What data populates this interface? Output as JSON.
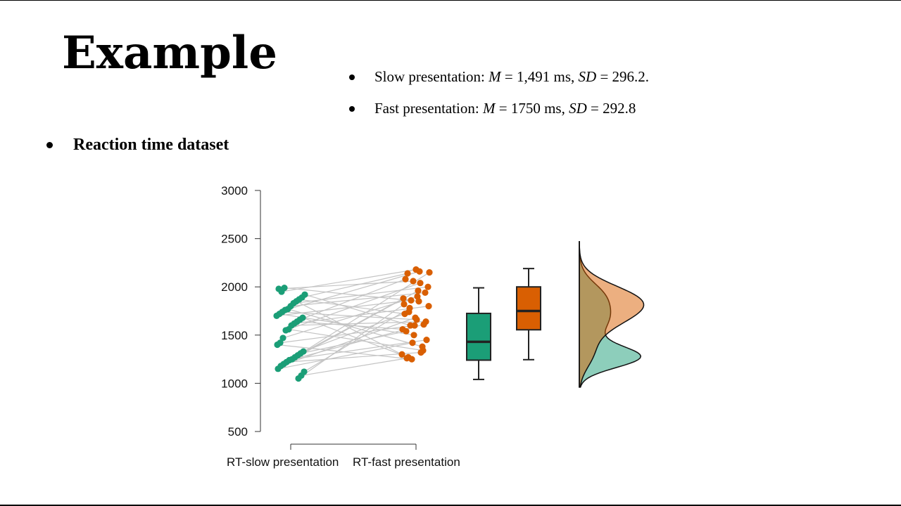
{
  "slide": {
    "title": "Example",
    "bullets": [
      {
        "label": "Slow presentation: ",
        "m_sym": "M",
        "m_val": " = 1,491 ms, ",
        "sd_sym": "SD",
        "sd_val": " = 296.2."
      },
      {
        "label": "Fast presentation: ",
        "m_sym": "M",
        "m_val": " = 1750 ms, ",
        "sd_sym": "SD",
        "sd_val": " = 292.8"
      }
    ],
    "section_label": "Reaction time dataset"
  },
  "chart_data": {
    "type": "raincloud",
    "y_ticks": [
      500,
      1000,
      1500,
      2000,
      2500,
      3000
    ],
    "ylim": [
      500,
      3000
    ],
    "grid": false,
    "categories": [
      "RT-slow presentation",
      "RT-fast presentation"
    ],
    "colors": {
      "slow": "#1b9e77",
      "fast": "#d95f02",
      "lines": "#c4c4c4"
    },
    "pairs": [
      [
        1990,
        1850
      ],
      [
        1950,
        2180
      ],
      [
        1980,
        2060
      ],
      [
        1920,
        1600
      ],
      [
        1890,
        2140
      ],
      [
        1870,
        1720
      ],
      [
        1850,
        1300
      ],
      [
        1830,
        2000
      ],
      [
        1800,
        1940
      ],
      [
        1770,
        1380
      ],
      [
        1760,
        2160
      ],
      [
        1740,
        1660
      ],
      [
        1720,
        1500
      ],
      [
        1700,
        1860
      ],
      [
        1680,
        1270
      ],
      [
        1660,
        2080
      ],
      [
        1640,
        1560
      ],
      [
        1620,
        1800
      ],
      [
        1600,
        1640
      ],
      [
        1560,
        1340
      ],
      [
        1550,
        2040
      ],
      [
        1470,
        1900
      ],
      [
        1420,
        1600
      ],
      [
        1400,
        1250
      ],
      [
        1330,
        1740
      ],
      [
        1310,
        1540
      ],
      [
        1290,
        1880
      ],
      [
        1270,
        2150
      ],
      [
        1250,
        1450
      ],
      [
        1240,
        1610
      ],
      [
        1220,
        1320
      ],
      [
        1200,
        1960
      ],
      [
        1180,
        1680
      ],
      [
        1150,
        1420
      ],
      [
        1120,
        1780
      ],
      [
        1080,
        1260
      ],
      [
        1050,
        1820
      ]
    ],
    "boxplots": [
      {
        "name": "slow",
        "min": 1040,
        "q1": 1240,
        "median": 1430,
        "q3": 1725,
        "max": 1990
      },
      {
        "name": "fast",
        "min": 1245,
        "q1": 1555,
        "median": 1750,
        "q3": 2000,
        "max": 2190
      }
    ],
    "density": {
      "y_range": [
        960,
        2470
      ],
      "slow_peak": 1270,
      "fast_peak": 1690
    }
  }
}
